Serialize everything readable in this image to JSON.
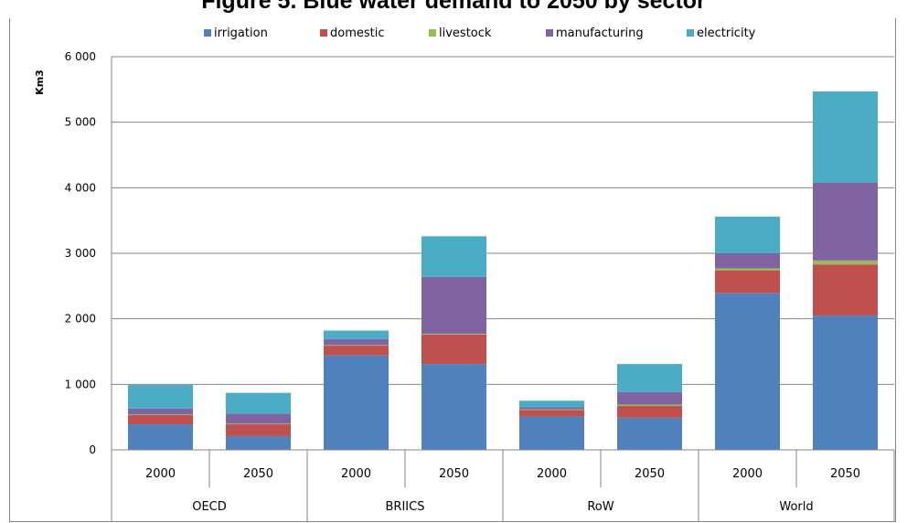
{
  "figure_title": "Figure 5. Blue water demand to 2050 by sector",
  "chart_data": {
    "type": "bar",
    "stacked": true,
    "title": "Figure 5. Blue water demand to 2050 by sector",
    "ylabel": "Km3",
    "xlabel": "",
    "ylim": [
      0,
      6000
    ],
    "yticks": [
      0,
      1000,
      2000,
      3000,
      4000,
      5000,
      6000
    ],
    "ytick_labels": [
      "0",
      "1 000",
      "2 000",
      "3 000",
      "4 000",
      "5 000",
      "6 000"
    ],
    "grid": true,
    "legend_position": "top",
    "groups": [
      "OECD",
      "BRIICS",
      "RoW",
      "World"
    ],
    "categories": [
      "2000",
      "2050",
      "2000",
      "2050",
      "2000",
      "2050",
      "2000",
      "2050"
    ],
    "series": [
      {
        "name": "irrigation",
        "color": "#4f81bd",
        "values": [
          390,
          210,
          1440,
          1310,
          510,
          490,
          2390,
          2050
        ]
      },
      {
        "name": "domestic",
        "color": "#c0504d",
        "values": [
          140,
          180,
          150,
          450,
          100,
          180,
          350,
          780
        ]
      },
      {
        "name": "livestock",
        "color": "#9bbb59",
        "values": [
          10,
          10,
          10,
          10,
          10,
          20,
          30,
          60
        ]
      },
      {
        "name": "manufacturing",
        "color": "#8064a2",
        "values": [
          90,
          150,
          90,
          870,
          30,
          190,
          230,
          1190
        ]
      },
      {
        "name": "electricity",
        "color": "#4bacc6",
        "values": [
          360,
          320,
          130,
          620,
          100,
          430,
          560,
          1390
        ]
      }
    ]
  }
}
